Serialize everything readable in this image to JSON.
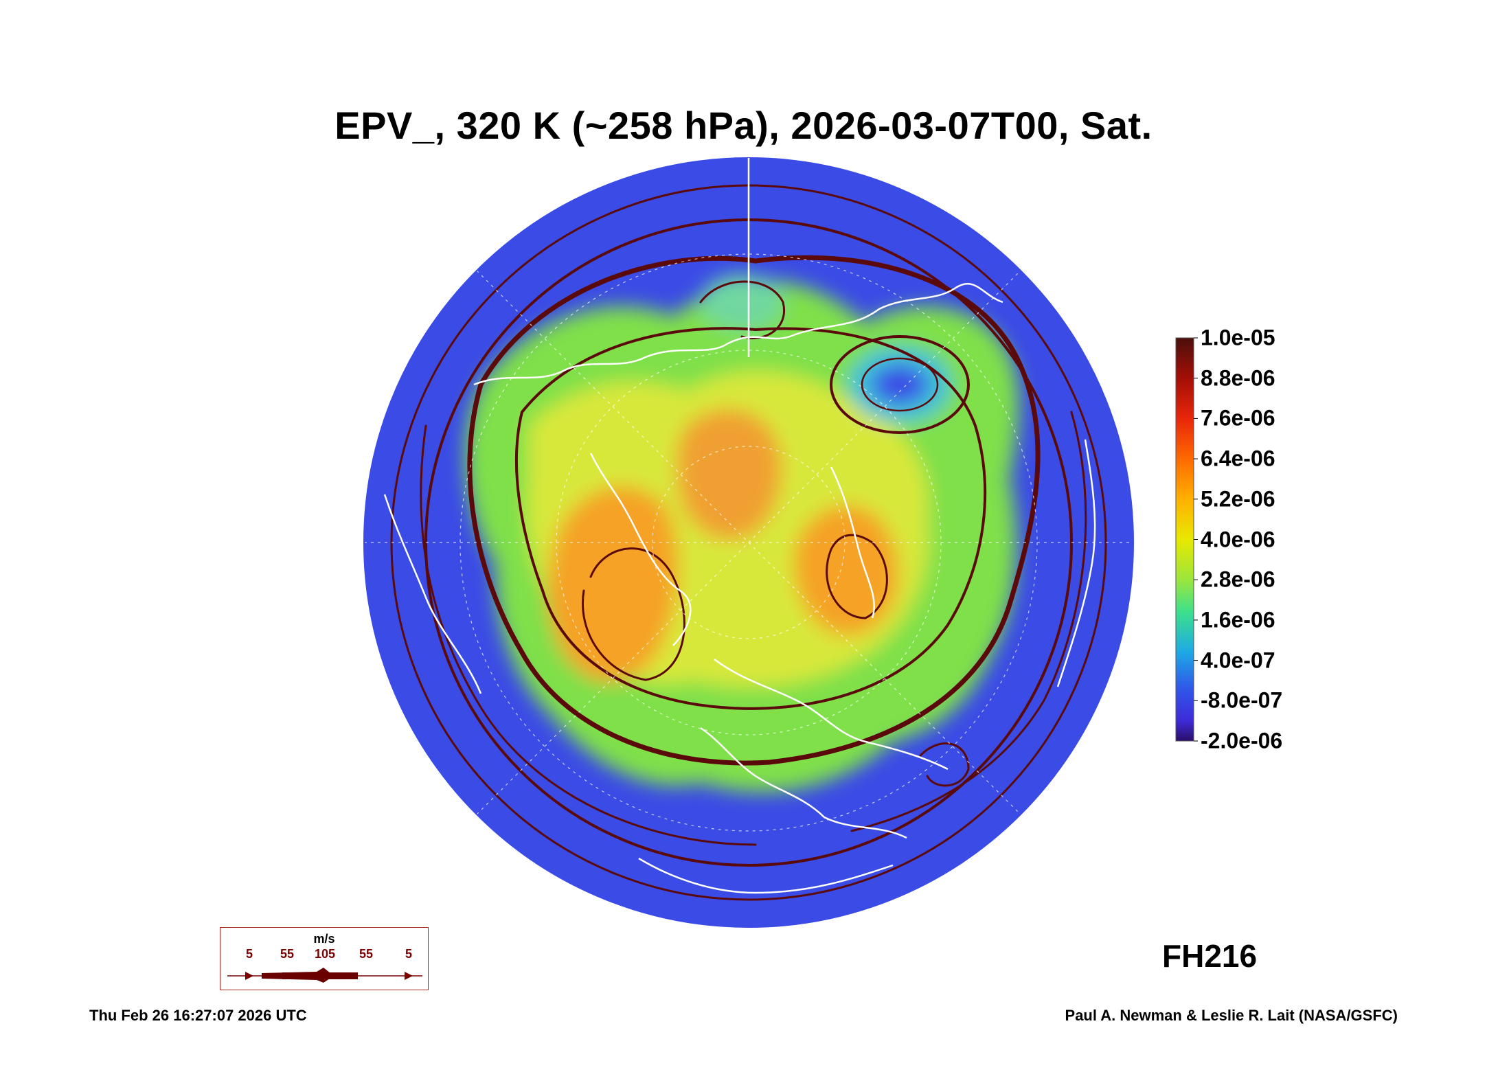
{
  "title": "EPV_, 320 K (~258 hPa), 2026-03-07T00, Sat.",
  "colorbar": {
    "labels": [
      "1.0e-05",
      "8.8e-06",
      "7.6e-06",
      "6.4e-06",
      "5.2e-06",
      "4.0e-06",
      "2.8e-06",
      "1.6e-06",
      "4.0e-07",
      "-8.0e-07",
      "-2.0e-06"
    ],
    "colors": [
      "#4b0f0b",
      "#a30f06",
      "#e8260a",
      "#ff6a00",
      "#ffb000",
      "#e8e800",
      "#9be63c",
      "#3ce08c",
      "#1ea9e6",
      "#2f57e8",
      "#3e2ad8",
      "#2b0e68"
    ]
  },
  "wind_legend": {
    "unit": "m/s",
    "ticks": [
      "5",
      "55",
      "105",
      "55",
      "5"
    ]
  },
  "forecast_hour": "FH216",
  "footer": {
    "timestamp": "Thu Feb 26 16:27:07 2026 UTC",
    "credit": "Paul A. Newman & Leslie R. Lait (NASA/GSFC)"
  },
  "map": {
    "projection": "north-polar-orthographic",
    "field_colors": {
      "background": "#3a4be6",
      "green": "#7fe04a",
      "yellow": "#d8e83a",
      "orange": "#f5a228",
      "cyan": "#3cc0d8",
      "streamline": "#5a0a0a",
      "coastline": "#ffffff"
    }
  }
}
